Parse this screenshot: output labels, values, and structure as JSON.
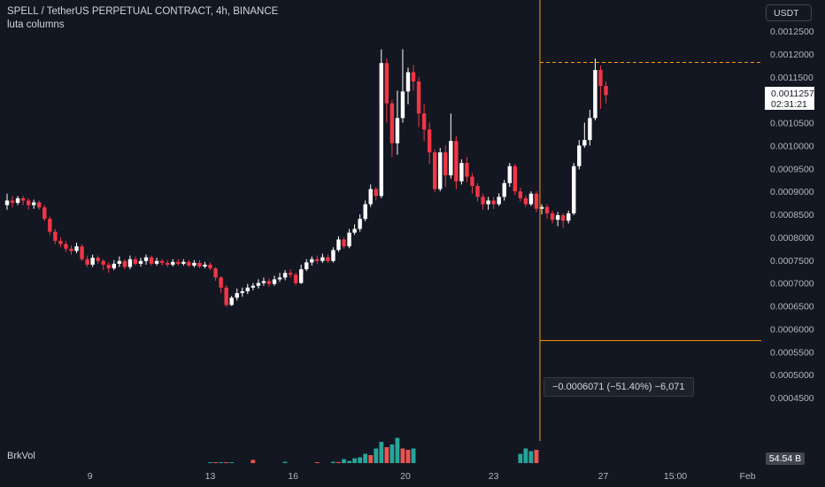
{
  "header": {
    "title": "SPELL / TetherUS PERPETUAL CONTRACT, 4h, BINANCE",
    "indicator": "luta columns"
  },
  "currency_button": "USDT",
  "price_tag": {
    "price": "0.0011257",
    "countdown": "02:31:21"
  },
  "measure_label": "−0.0006071 (−51.40%) −6,071",
  "volume": {
    "label": "BrkVol",
    "value": "54.54 B"
  },
  "colors": {
    "background": "#131722",
    "up": "#ffffff",
    "down": "#f23645",
    "vol_up": "#26a69a",
    "vol_down": "#ef5350",
    "measure_line": "#ff9800"
  },
  "chart_data": {
    "type": "candlestick",
    "title": "SPELL / TetherUS PERPETUAL CONTRACT, 4h, BINANCE",
    "y_ticks": [
      "0.0012500",
      "0.0012000",
      "0.0011500",
      "0.0011000",
      "0.0010500",
      "0.0010000",
      "0.0009500",
      "0.0009000",
      "0.0008500",
      "0.0008000",
      "0.0007500",
      "0.0007000",
      "0.0006500",
      "0.0006000",
      "0.0005500",
      "0.0005000",
      "0.0004500"
    ],
    "y_tick_values": [
      0.00125,
      0.0012,
      0.00115,
      0.0011,
      0.00105,
      0.001,
      0.00095,
      0.0009,
      0.00085,
      0.0008,
      0.00075,
      0.0007,
      0.00065,
      0.0006,
      0.00055,
      0.0005,
      0.00045
    ],
    "ylim": [
      0.00042,
      0.001315
    ],
    "x_ticks": [
      "9",
      "13",
      "16",
      "20",
      "23",
      "27",
      "15:00",
      "Feb"
    ],
    "x_tick_index": [
      15.5,
      38,
      53.5,
      74.5,
      91,
      111.5,
      125,
      138.5
    ],
    "measure": {
      "high": 0.0011815,
      "low": 0.0005744,
      "index": 99
    },
    "candles": [
      [
        0.00087,
        0.00088,
        0.000895,
        0.00086
      ],
      [
        0.00088,
        0.000875,
        0.00089,
        0.000865
      ],
      [
        0.000875,
        0.000885,
        0.00089,
        0.00087
      ],
      [
        0.000885,
        0.00088,
        0.00089,
        0.00087
      ],
      [
        0.00088,
        0.00087,
        0.000885,
        0.00086
      ],
      [
        0.00087,
        0.000876,
        0.000882,
        0.000862
      ],
      [
        0.000876,
        0.000865,
        0.00088,
        0.00086
      ],
      [
        0.000865,
        0.00084,
        0.00087,
        0.000835
      ],
      [
        0.00084,
        0.000812,
        0.000845,
        0.000805
      ],
      [
        0.000812,
        0.000792,
        0.000818,
        0.000785
      ],
      [
        0.000792,
        0.000785,
        0.0008,
        0.000778
      ],
      [
        0.000785,
        0.000775,
        0.000792,
        0.000768
      ],
      [
        0.000775,
        0.00077,
        0.000782,
        0.000762
      ],
      [
        0.00077,
        0.00078,
        0.000788,
        0.000765
      ],
      [
        0.00078,
        0.000752,
        0.000785,
        0.000748
      ],
      [
        0.000752,
        0.00074,
        0.00076,
        0.000735
      ],
      [
        0.00074,
        0.000755,
        0.000762,
        0.000735
      ],
      [
        0.000755,
        0.000748,
        0.00076,
        0.000742
      ],
      [
        0.000748,
        0.00074,
        0.000752,
        0.000728
      ],
      [
        0.00074,
        0.000732,
        0.000745,
        0.000722
      ],
      [
        0.000732,
        0.000742,
        0.00075,
        0.000728
      ],
      [
        0.000742,
        0.000748,
        0.000758,
        0.000735
      ],
      [
        0.000748,
        0.000735,
        0.000752,
        0.00073
      ],
      [
        0.000735,
        0.000752,
        0.00076,
        0.00073
      ],
      [
        0.000752,
        0.000742,
        0.000758,
        0.000738
      ],
      [
        0.000742,
        0.000748,
        0.000755,
        0.000736
      ],
      [
        0.000748,
        0.000756,
        0.000762,
        0.00074
      ],
      [
        0.000756,
        0.000742,
        0.00076,
        0.000738
      ],
      [
        0.000742,
        0.000748,
        0.000755,
        0.000738
      ],
      [
        0.000748,
        0.000744,
        0.000752,
        0.000738
      ],
      [
        0.000744,
        0.00074,
        0.00075,
        0.000735
      ],
      [
        0.00074,
        0.000746,
        0.000752,
        0.000736
      ],
      [
        0.000746,
        0.000742,
        0.000752,
        0.000738
      ],
      [
        0.000742,
        0.000746,
        0.000752,
        0.000738
      ],
      [
        0.000746,
        0.000738,
        0.00075,
        0.000735
      ],
      [
        0.000738,
        0.000744,
        0.00075,
        0.000734
      ],
      [
        0.000744,
        0.000736,
        0.00075,
        0.000732
      ],
      [
        0.000736,
        0.00074,
        0.000746,
        0.000732
      ],
      [
        0.00074,
        0.000732,
        0.000745,
        0.000728
      ],
      [
        0.000732,
        0.000712,
        0.000735,
        0.000705
      ],
      [
        0.000712,
        0.00069,
        0.000715,
        0.000678
      ],
      [
        0.00069,
        0.000652,
        0.000695,
        0.000648
      ],
      [
        0.000652,
        0.000668,
        0.000672,
        0.00065
      ],
      [
        0.000668,
        0.000678,
        0.000688,
        0.000662
      ],
      [
        0.000678,
        0.000682,
        0.00069,
        0.00067
      ],
      [
        0.000682,
        0.00069,
        0.000698,
        0.000676
      ],
      [
        0.00069,
        0.000694,
        0.0007,
        0.000684
      ],
      [
        0.000694,
        0.0007,
        0.000708,
        0.000688
      ],
      [
        0.0007,
        0.000704,
        0.000712,
        0.000694
      ],
      [
        0.000704,
        0.000698,
        0.00071,
        0.000692
      ],
      [
        0.000698,
        0.000708,
        0.000716,
        0.000694
      ],
      [
        0.000708,
        0.000712,
        0.000722,
        0.000702
      ],
      [
        0.000712,
        0.000722,
        0.000728,
        0.000706
      ],
      [
        0.000722,
        0.000718,
        0.00073,
        0.000712
      ],
      [
        0.000718,
        0.0007,
        0.000722,
        0.000695
      ],
      [
        0.0007,
        0.00073,
        0.00074,
        0.000698
      ],
      [
        0.00073,
        0.000745,
        0.000752,
        0.000726
      ],
      [
        0.000745,
        0.000752,
        0.000758,
        0.000738
      ],
      [
        0.000752,
        0.000748,
        0.00076,
        0.000742
      ],
      [
        0.000748,
        0.000756,
        0.000764,
        0.000744
      ],
      [
        0.000756,
        0.000748,
        0.000762,
        0.000744
      ],
      [
        0.000748,
        0.000772,
        0.000778,
        0.000745
      ],
      [
        0.000772,
        0.000795,
        0.000802,
        0.000768
      ],
      [
        0.000795,
        0.00078,
        0.0008,
        0.000775
      ],
      [
        0.00078,
        0.00081,
        0.000818,
        0.000776
      ],
      [
        0.00081,
        0.000818,
        0.000828,
        0.000805
      ],
      [
        0.000818,
        0.00084,
        0.00085,
        0.000812
      ],
      [
        0.00084,
        0.000872,
        0.00088,
        0.000835
      ],
      [
        0.000872,
        0.000905,
        0.000915,
        0.000866
      ],
      [
        0.000905,
        0.00089,
        0.00091,
        0.00088
      ],
      [
        0.00089,
        0.00118,
        0.00121,
        0.000885
      ],
      [
        0.00118,
        0.001092,
        0.00119,
        0.00105
      ],
      [
        0.001092,
        0.001005,
        0.0011,
        0.000975
      ],
      [
        0.001005,
        0.00106,
        0.00112,
        0.00098
      ],
      [
        0.00106,
        0.001118,
        0.00121,
        0.00105
      ],
      [
        0.001118,
        0.00116,
        0.00117,
        0.00109
      ],
      [
        0.00116,
        0.00114,
        0.001175,
        0.00112
      ],
      [
        0.00114,
        0.00107,
        0.00115,
        0.00104
      ],
      [
        0.00107,
        0.001035,
        0.00109,
        0.00101
      ],
      [
        0.001035,
        0.000985,
        0.00105,
        0.00096
      ],
      [
        0.000985,
        0.000905,
        0.000992,
        0.000898
      ],
      [
        0.000905,
        0.000985,
        0.000995,
        0.0009
      ],
      [
        0.000985,
        0.000935,
        0.001,
        0.00091
      ],
      [
        0.000935,
        0.00101,
        0.00107,
        0.000928
      ],
      [
        0.00101,
        0.000922,
        0.00102,
        0.000905
      ],
      [
        0.000922,
        0.000962,
        0.00097,
        0.000915
      ],
      [
        0.000962,
        0.000932,
        0.000975,
        0.00092
      ],
      [
        0.000932,
        0.000912,
        0.00094,
        0.000895
      ],
      [
        0.000912,
        0.000888,
        0.000918,
        0.000878
      ],
      [
        0.000888,
        0.000872,
        0.000895,
        0.00086
      ],
      [
        0.000872,
        0.00088,
        0.000888,
        0.00086
      ],
      [
        0.00088,
        0.000872,
        0.000888,
        0.000862
      ],
      [
        0.000872,
        0.000888,
        0.000896,
        0.000868
      ],
      [
        0.000888,
        0.000918,
        0.000925,
        0.00088
      ],
      [
        0.000918,
        0.000955,
        0.000962,
        0.00091
      ],
      [
        0.000955,
        0.0009,
        0.00096,
        0.000892
      ],
      [
        0.0009,
        0.000885,
        0.000908,
        0.000878
      ],
      [
        0.000885,
        0.000872,
        0.000892,
        0.000866
      ],
      [
        0.000872,
        0.000895,
        0.0009,
        0.000868
      ],
      [
        0.000895,
        0.000862,
        0.0009,
        0.000855
      ],
      [
        0.000862,
        0.000866,
        0.000872,
        0.00085
      ],
      [
        0.000866,
        0.000852,
        0.000872,
        0.00084
      ],
      [
        0.000852,
        0.000838,
        0.000858,
        0.00083
      ],
      [
        0.000838,
        0.000848,
        0.000855,
        0.000824
      ],
      [
        0.000848,
        0.000836,
        0.000852,
        0.00082
      ],
      [
        0.000836,
        0.000852,
        0.000858,
        0.00083
      ],
      [
        0.000852,
        0.000955,
        0.000962,
        0.000848
      ],
      [
        0.000955,
        0.001,
        0.001012,
        0.000948
      ],
      [
        0.001,
        0.001012,
        0.00105,
        0.000995
      ],
      [
        0.001012,
        0.00106,
        0.001078,
        0.001
      ],
      [
        0.00106,
        0.001165,
        0.00119,
        0.001055
      ],
      [
        0.001165,
        0.00113,
        0.001175,
        0.00108
      ],
      [
        0.00113,
        0.00111,
        0.00114,
        0.001092
      ]
    ],
    "volume": [
      [
        "up",
        0.02
      ],
      [
        "down",
        0.015
      ],
      [
        "up",
        0.02
      ],
      [
        "down",
        0.015
      ],
      [
        "up",
        0.03
      ],
      [
        "down",
        0.12
      ],
      [
        "up",
        0.05
      ],
      [
        "down",
        0.02
      ],
      [
        "up",
        0.05
      ],
      [
        "down",
        0.04
      ],
      [
        "up",
        0.15
      ],
      [
        "up",
        0.08
      ],
      [
        "up",
        0.18
      ],
      [
        "up",
        0.22
      ],
      [
        "up",
        0.35
      ],
      [
        "down",
        0.3
      ],
      [
        "up",
        0.55
      ],
      [
        "up",
        0.8
      ],
      [
        "down",
        0.6
      ],
      [
        "up",
        0.7
      ],
      [
        "up",
        0.95
      ],
      [
        "down",
        0.55
      ],
      [
        "down",
        0.5
      ],
      [
        "up",
        0.55
      ],
      [
        "up",
        0.35
      ],
      [
        "up",
        0.55
      ],
      [
        "up",
        0.45
      ],
      [
        "down",
        0.5
      ]
    ],
    "volume_index_start": [
      38,
      39,
      40,
      41,
      42,
      46,
      52,
      58,
      61,
      62,
      63,
      64,
      65,
      66,
      67,
      68,
      69,
      70,
      71,
      72,
      73,
      74,
      75,
      76,
      96,
      97,
      98,
      99
    ]
  }
}
